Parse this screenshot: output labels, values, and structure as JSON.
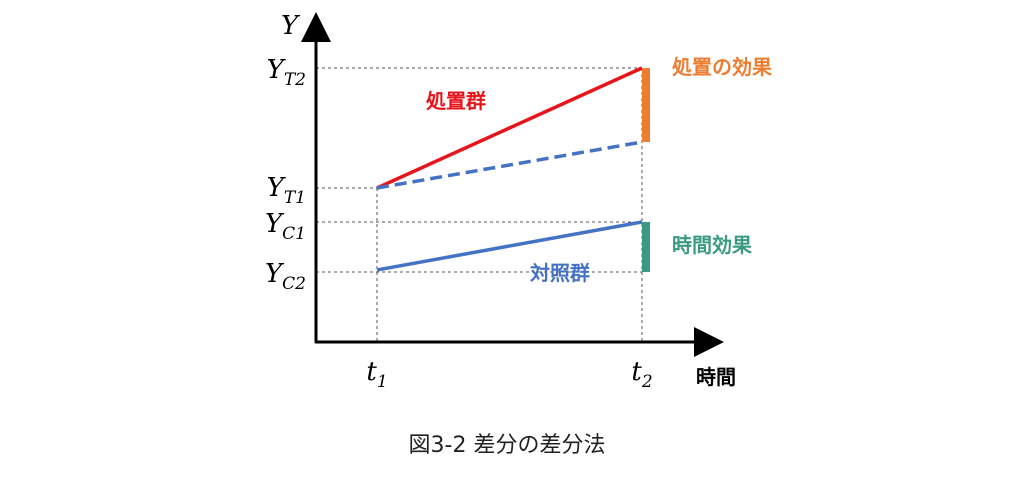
{
  "axes": {
    "y_label": "Y",
    "x_label": "時間"
  },
  "y_levels": [
    {
      "base": "Y",
      "sub": "T2"
    },
    {
      "base": "Y",
      "sub": "T1"
    },
    {
      "base": "Y",
      "sub": "C1"
    },
    {
      "base": "Y",
      "sub": "C2"
    }
  ],
  "x_levels": [
    {
      "base": "t",
      "sub": "1"
    },
    {
      "base": "t",
      "sub": "2"
    }
  ],
  "annotations": {
    "treatment_effect": "処置の効果",
    "treatment_group": "処置群",
    "time_effect": "時間効果",
    "control_group": "対照群"
  },
  "caption": "図3-2 差分の差分法"
}
